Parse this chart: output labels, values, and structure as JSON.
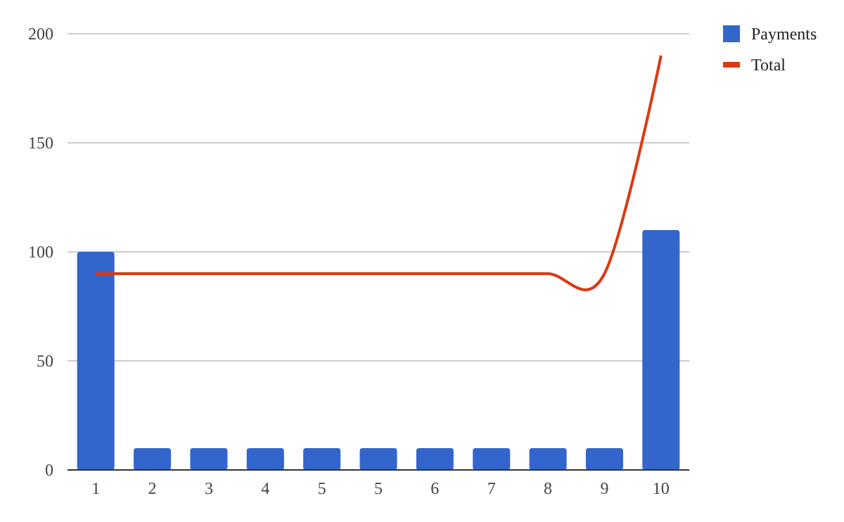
{
  "chart_data": {
    "type": "bar",
    "categories": [
      "1",
      "2",
      "3",
      "4",
      "5",
      "5",
      "6",
      "7",
      "8",
      "9",
      "10"
    ],
    "series": [
      {
        "name": "Payments",
        "color": "#3366cc",
        "values": [
          100,
          10,
          10,
          10,
          10,
          10,
          10,
          10,
          10,
          10,
          110
        ]
      },
      {
        "name": "Total",
        "type": "line",
        "color": "#dc3912",
        "values": [
          90,
          90,
          90,
          90,
          90,
          90,
          90,
          90,
          90,
          90,
          190
        ]
      }
    ],
    "ylim": [
      0,
      200
    ],
    "yticks": [
      0,
      50,
      100,
      150,
      200
    ],
    "grid": "y",
    "legend": "right",
    "marker": "none"
  }
}
